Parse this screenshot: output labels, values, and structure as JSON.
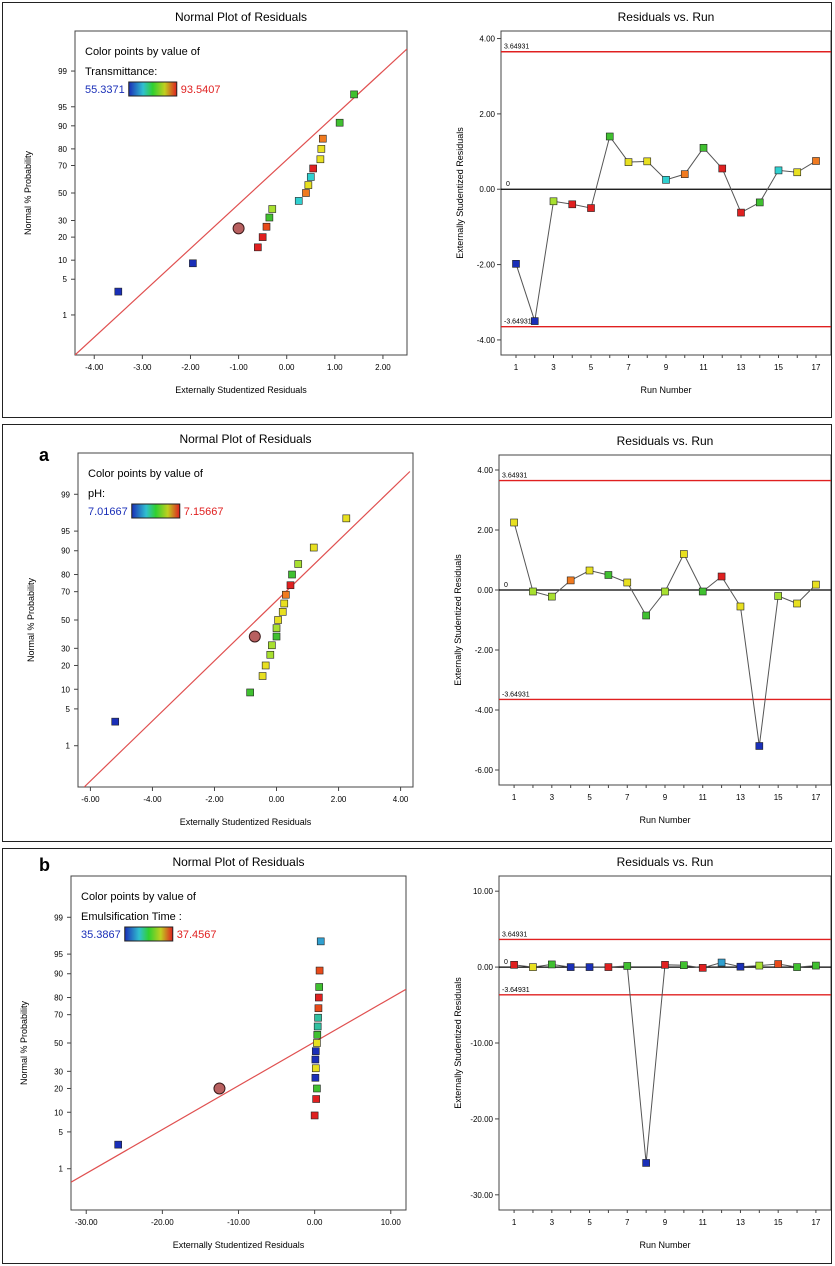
{
  "chart_data": [
    {
      "panel": "",
      "plots": [
        {
          "type": "scatter",
          "title": "Normal Plot of Residuals",
          "xlabel": "Externally Studentized Residuals",
          "ylabel": "Normal % Probability",
          "xlim": [
            -4.4,
            2.5
          ],
          "xticks": [
            "-4.00",
            "-3.00",
            "-2.00",
            "-1.00",
            "0.00",
            "1.00",
            "2.00"
          ],
          "yticks": [
            1,
            5,
            10,
            20,
            30,
            50,
            70,
            80,
            90,
            95,
            99
          ],
          "legend": {
            "line1": "Color points by value of",
            "line2": "Transmittance:",
            "min": "55.3371",
            "max": "93.5407"
          },
          "fit_line": [
            [
              -4.4,
              0.1
            ],
            [
              2.5,
              99.7
            ]
          ],
          "center_point": [
            -1.0,
            25
          ],
          "points": [
            {
              "x": -3.5,
              "p": 3,
              "c": "#1a2fb8"
            },
            {
              "x": -1.95,
              "p": 9,
              "c": "#1a2fb8"
            },
            {
              "x": -0.6,
              "p": 15,
              "c": "#e02020"
            },
            {
              "x": -0.5,
              "p": 20,
              "c": "#e02020"
            },
            {
              "x": -0.42,
              "p": 26,
              "c": "#e84a1a"
            },
            {
              "x": -0.36,
              "p": 32,
              "c": "#40c030"
            },
            {
              "x": -0.3,
              "p": 38,
              "c": "#a8e030"
            },
            {
              "x": 0.25,
              "p": 44,
              "c": "#30d0d0"
            },
            {
              "x": 0.4,
              "p": 50,
              "c": "#f07a20"
            },
            {
              "x": 0.45,
              "p": 56,
              "c": "#e8e020"
            },
            {
              "x": 0.5,
              "p": 62,
              "c": "#30d0d0"
            },
            {
              "x": 0.55,
              "p": 68,
              "c": "#e02020"
            },
            {
              "x": 0.7,
              "p": 74,
              "c": "#e8e020"
            },
            {
              "x": 0.72,
              "p": 80,
              "c": "#e8e020"
            },
            {
              "x": 0.75,
              "p": 85,
              "c": "#f07a20"
            },
            {
              "x": 1.1,
              "p": 91,
              "c": "#40c030"
            },
            {
              "x": 1.4,
              "p": 97,
              "c": "#40c030"
            }
          ]
        },
        {
          "type": "line",
          "title": "Residuals vs. Run",
          "xlabel": "Run Number",
          "ylabel": "Externally Studentized Residuals",
          "ylim": [
            -4.4,
            4.2
          ],
          "yticks": [
            "4.00",
            "2.00",
            "0.00",
            "-2.00",
            "-4.00"
          ],
          "xticks": [
            "1",
            "3",
            "5",
            "7",
            "9",
            "11",
            "13",
            "15",
            "17"
          ],
          "limit_labels": [
            "3.64931",
            "-3.64931"
          ],
          "zero_label": "0",
          "limits": [
            3.64931,
            -3.64931
          ],
          "x": [
            1,
            2,
            3,
            4,
            5,
            6,
            7,
            8,
            9,
            10,
            11,
            12,
            13,
            14,
            15,
            16,
            17
          ],
          "values": [
            -1.98,
            -3.5,
            -0.32,
            -0.4,
            -0.5,
            1.4,
            0.72,
            0.74,
            0.25,
            0.4,
            1.1,
            0.55,
            -0.62,
            -0.35,
            0.5,
            0.45,
            0.75
          ],
          "colors": [
            "#1a2fb8",
            "#1a2fb8",
            "#a8e030",
            "#e02020",
            "#e02020",
            "#40c030",
            "#e8e020",
            "#e8e020",
            "#30d0d0",
            "#f07a20",
            "#40c030",
            "#e02020",
            "#e02020",
            "#40c030",
            "#30d0d0",
            "#e8e020",
            "#f07a20"
          ]
        }
      ]
    },
    {
      "panel": "a",
      "plots": [
        {
          "type": "scatter",
          "title": "Normal Plot of Residuals",
          "xlabel": "Externally Studentized Residuals",
          "ylabel": "Normal % Probability",
          "xlim": [
            -6.4,
            4.4
          ],
          "xticks": [
            "-6.00",
            "-4.00",
            "-2.00",
            "0.00",
            "2.00",
            "4.00"
          ],
          "yticks": [
            1,
            5,
            10,
            20,
            30,
            50,
            70,
            80,
            90,
            95,
            99
          ],
          "legend": {
            "line1": "Color points by value of",
            "line2": "pH:",
            "min": "7.01667",
            "max": "7.15667"
          },
          "fit_line": [
            [
              -6.2,
              0.1
            ],
            [
              4.3,
              99.7
            ]
          ],
          "center_point": [
            -0.7,
            38
          ],
          "points": [
            {
              "x": -5.2,
              "p": 3,
              "c": "#1a2fb8"
            },
            {
              "x": -0.85,
              "p": 9,
              "c": "#40c030"
            },
            {
              "x": -0.45,
              "p": 15,
              "c": "#e8e020"
            },
            {
              "x": -0.35,
              "p": 20,
              "c": "#e8e020"
            },
            {
              "x": -0.2,
              "p": 26,
              "c": "#a8e030"
            },
            {
              "x": -0.15,
              "p": 32,
              "c": "#a8e030"
            },
            {
              "x": 0.0,
              "p": 38,
              "c": "#40c030"
            },
            {
              "x": 0.0,
              "p": 44,
              "c": "#a8e030"
            },
            {
              "x": 0.05,
              "p": 50,
              "c": "#e8e020"
            },
            {
              "x": 0.2,
              "p": 56,
              "c": "#e8e020"
            },
            {
              "x": 0.25,
              "p": 62,
              "c": "#e8e020"
            },
            {
              "x": 0.3,
              "p": 68,
              "c": "#f07a20"
            },
            {
              "x": 0.45,
              "p": 74,
              "c": "#e02020"
            },
            {
              "x": 0.5,
              "p": 80,
              "c": "#40c030"
            },
            {
              "x": 0.7,
              "p": 85,
              "c": "#a8e030"
            },
            {
              "x": 1.2,
              "p": 91,
              "c": "#e8e020"
            },
            {
              "x": 2.25,
              "p": 97,
              "c": "#e8e020"
            }
          ]
        },
        {
          "type": "line",
          "title": "Residuals vs. Run",
          "xlabel": "Run Number",
          "ylabel": "Externally Studentized Residuals",
          "ylim": [
            -6.5,
            4.5
          ],
          "yticks": [
            "4.00",
            "2.00",
            "0.00",
            "-2.00",
            "-4.00",
            "-6.00"
          ],
          "xticks": [
            "1",
            "3",
            "5",
            "7",
            "9",
            "11",
            "13",
            "15",
            "17"
          ],
          "limit_labels": [
            "3.64931",
            "-3.64931"
          ],
          "zero_label": "0",
          "limits": [
            3.64931,
            -3.64931
          ],
          "x": [
            1,
            2,
            3,
            4,
            5,
            6,
            7,
            8,
            9,
            10,
            11,
            12,
            13,
            14,
            15,
            16,
            17
          ],
          "values": [
            2.25,
            -0.05,
            -0.22,
            0.32,
            0.65,
            0.5,
            0.25,
            -0.85,
            -0.05,
            1.2,
            -0.05,
            0.45,
            -0.55,
            -5.2,
            -0.2,
            -0.45,
            0.18
          ],
          "colors": [
            "#e8e020",
            "#a8e030",
            "#a8e030",
            "#f07a20",
            "#e8e020",
            "#40c030",
            "#e8e020",
            "#40c030",
            "#a8e030",
            "#e8e020",
            "#40c030",
            "#e02020",
            "#e8e020",
            "#1a2fb8",
            "#a8e030",
            "#e8e020",
            "#e8e020"
          ]
        }
      ]
    },
    {
      "panel": "b",
      "plots": [
        {
          "type": "scatter",
          "title": "Normal Plot of Residuals",
          "xlabel": "Externally Studentized Residuals",
          "ylabel": "Normal % Probability",
          "xlim": [
            -32,
            12
          ],
          "xticks": [
            "-30.00",
            "-20.00",
            "-10.00",
            "0.00",
            "10.00"
          ],
          "yticks": [
            1,
            5,
            10,
            20,
            30,
            50,
            70,
            80,
            90,
            95,
            99
          ],
          "legend": {
            "line1": "Color points by value of",
            "line2": "Emulsification Time :",
            "min": "35.3867",
            "max": "37.4567"
          },
          "fit_line": [
            [
              -32,
              0.5
            ],
            [
              12,
              84
            ]
          ],
          "center_point": [
            -12.5,
            20
          ],
          "points": [
            {
              "x": -25.8,
              "p": 3,
              "c": "#1a2fb8"
            },
            {
              "x": 0.0,
              "p": 9,
              "c": "#e02020"
            },
            {
              "x": 0.2,
              "p": 15,
              "c": "#e02020"
            },
            {
              "x": 0.3,
              "p": 20,
              "c": "#40c030"
            },
            {
              "x": 0.1,
              "p": 26,
              "c": "#1a2fb8"
            },
            {
              "x": 0.15,
              "p": 32,
              "c": "#e8e020"
            },
            {
              "x": 0.1,
              "p": 38,
              "c": "#1a2fb8"
            },
            {
              "x": 0.15,
              "p": 44,
              "c": "#1a2fb8"
            },
            {
              "x": 0.3,
              "p": 50,
              "c": "#e8e020"
            },
            {
              "x": 0.35,
              "p": 56,
              "c": "#40c030"
            },
            {
              "x": 0.4,
              "p": 62,
              "c": "#30c0a0"
            },
            {
              "x": 0.45,
              "p": 68,
              "c": "#30c0a0"
            },
            {
              "x": 0.5,
              "p": 74,
              "c": "#e84a1a"
            },
            {
              "x": 0.55,
              "p": 80,
              "c": "#e02020"
            },
            {
              "x": 0.6,
              "p": 85,
              "c": "#40c030"
            },
            {
              "x": 0.65,
              "p": 91,
              "c": "#e84a1a"
            },
            {
              "x": 0.8,
              "p": 97,
              "c": "#30a0d0"
            }
          ]
        },
        {
          "type": "line",
          "title": "Residuals vs. Run",
          "xlabel": "Run Number",
          "ylabel": "Externally Studentized Residuals",
          "ylim": [
            -32,
            12
          ],
          "yticks": [
            "10.00",
            "0.00",
            "-10.00",
            "-20.00",
            "-30.00"
          ],
          "xticks": [
            "1",
            "3",
            "5",
            "7",
            "9",
            "11",
            "13",
            "15",
            "17"
          ],
          "limit_labels": [
            "3.64931",
            "-3.64931"
          ],
          "zero_label": "0",
          "limits": [
            3.64931,
            -3.64931
          ],
          "x": [
            1,
            2,
            3,
            4,
            5,
            6,
            7,
            8,
            9,
            10,
            11,
            12,
            13,
            14,
            15,
            16,
            17
          ],
          "values": [
            0.3,
            0.0,
            0.35,
            0.0,
            0.0,
            0.0,
            0.15,
            -25.8,
            0.3,
            0.25,
            -0.1,
            0.6,
            0.05,
            0.2,
            0.4,
            0.0,
            0.2
          ],
          "colors": [
            "#e02020",
            "#e8e020",
            "#40c030",
            "#1a2fb8",
            "#1a2fb8",
            "#e02020",
            "#40c030",
            "#1a2fb8",
            "#e02020",
            "#40c030",
            "#e02020",
            "#30a0d0",
            "#1a2fb8",
            "#a8e030",
            "#e84a1a",
            "#40c030",
            "#40c030"
          ]
        }
      ]
    }
  ]
}
